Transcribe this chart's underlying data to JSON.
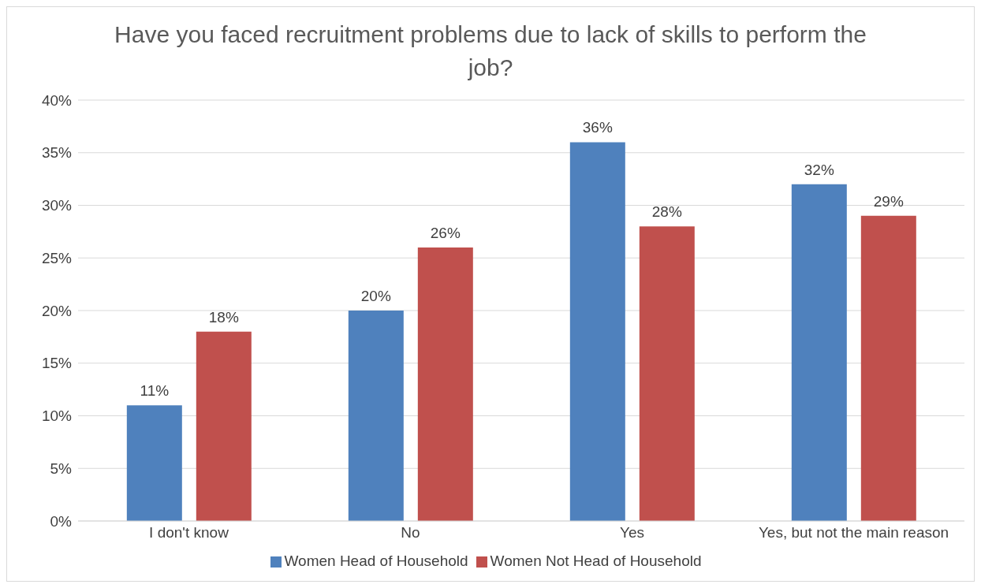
{
  "chart_data": {
    "type": "bar",
    "title": "Have you faced recruitment problems due to lack of skills to perform the job?",
    "categories": [
      "I don't know",
      "No",
      "Yes",
      "Yes, but not the main reason"
    ],
    "series": [
      {
        "name": "Women Head of Household",
        "color": "#4f81bd",
        "values": [
          11,
          20,
          36,
          32
        ],
        "value_labels": [
          "11%",
          "20%",
          "36%",
          "32%"
        ]
      },
      {
        "name": "Women Not Head of Household",
        "color": "#c0504d",
        "values": [
          18,
          26,
          28,
          29
        ],
        "value_labels": [
          "18%",
          "26%",
          "28%",
          "29%"
        ]
      }
    ],
    "ylim": [
      0,
      40
    ],
    "yticks": [
      {
        "value": 0,
        "label": "0%"
      },
      {
        "value": 5,
        "label": "5%"
      },
      {
        "value": 10,
        "label": "10%"
      },
      {
        "value": 15,
        "label": "15%"
      },
      {
        "value": 20,
        "label": "20%"
      },
      {
        "value": 25,
        "label": "25%"
      },
      {
        "value": 30,
        "label": "30%"
      },
      {
        "value": 35,
        "label": "35%"
      },
      {
        "value": 40,
        "label": "40%"
      }
    ],
    "grid": "y",
    "legend": "bottom"
  }
}
